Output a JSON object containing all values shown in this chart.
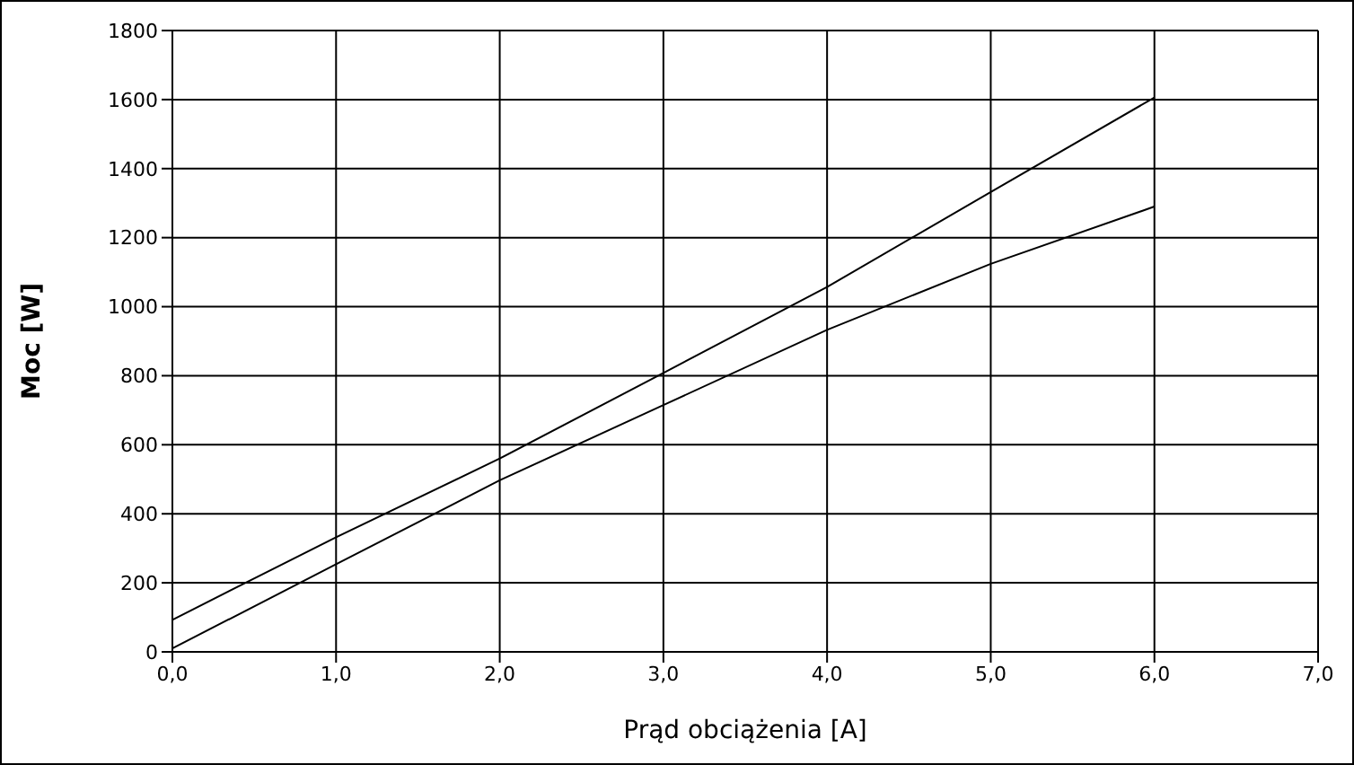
{
  "chart_data": {
    "type": "line",
    "xlabel": "Prąd obciążenia [A]",
    "ylabel": "Moc [W]",
    "x": [
      0,
      1,
      2,
      3,
      4,
      5,
      6
    ],
    "series": [
      {
        "color": "#000000",
        "values": [
          93,
          332,
          560,
          808,
          1057,
          1332,
          1606
        ]
      },
      {
        "color": "#000000",
        "values": [
          10,
          254,
          497,
          715,
          933,
          1124,
          1290
        ]
      }
    ],
    "xlim": [
      0,
      7
    ],
    "xticks": [
      {
        "value": 0,
        "label": "0,0"
      },
      {
        "value": 1,
        "label": "1,0"
      },
      {
        "value": 2,
        "label": "2,0"
      },
      {
        "value": 3,
        "label": "3,0"
      },
      {
        "value": 4,
        "label": "4,0"
      },
      {
        "value": 5,
        "label": "5,0"
      },
      {
        "value": 6,
        "label": "6,0"
      },
      {
        "value": 7,
        "label": "7,0"
      }
    ],
    "ylim": [
      0,
      1800
    ],
    "yticks": [
      0,
      200,
      400,
      600,
      800,
      1000,
      1200,
      1400,
      1600,
      1800
    ],
    "grid": true,
    "legend": false,
    "marker": "none",
    "line_style": "solid"
  }
}
